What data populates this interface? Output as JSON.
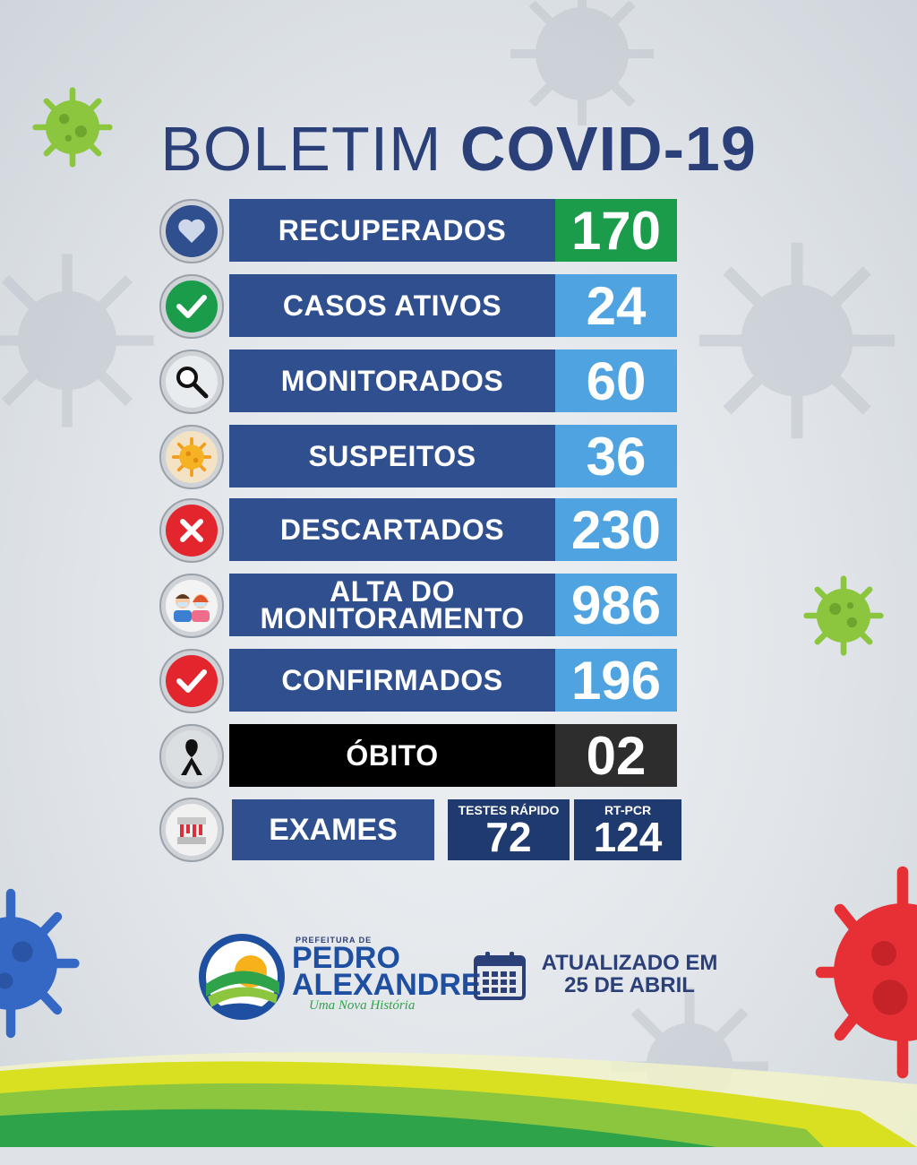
{
  "title": {
    "light": "BOLETIM",
    "bold": "COVID-19"
  },
  "rows": [
    {
      "label": "RECUPERADOS",
      "value": "170",
      "icon": "heart-icon",
      "value_color": "#1a9c4a"
    },
    {
      "label": "CASOS ATIVOS",
      "value": "24",
      "icon": "checkmark-icon",
      "value_color": "#4fa3e0"
    },
    {
      "label": "MONITORADOS",
      "value": "60",
      "icon": "magnifier-icon",
      "value_color": "#4fa3e0"
    },
    {
      "label": "SUSPEITOS",
      "value": "36",
      "icon": "virus-icon",
      "value_color": "#4fa3e0"
    },
    {
      "label": "DESCARTADOS",
      "value": "230",
      "icon": "x-icon",
      "value_color": "#4fa3e0"
    },
    {
      "label_line1": "ALTA DO",
      "label_line2": "MONITORAMENTO",
      "value": "986",
      "icon": "masked-people-icon",
      "value_color": "#4fa3e0"
    },
    {
      "label": "CONFIRMADOS",
      "value": "196",
      "icon": "check-red-icon",
      "value_color": "#4fa3e0"
    },
    {
      "label": "ÓBITO",
      "value": "02",
      "icon": "mourning-ribbon-icon",
      "value_color": "#2d2d2d"
    }
  ],
  "exams": {
    "label": "EXAMES",
    "rapid": {
      "label": "TESTES RÁPIDO",
      "value": "72"
    },
    "pcr": {
      "label": "RT-PCR",
      "value": "124"
    }
  },
  "logo": {
    "prefix": "PREFEITURA DE",
    "line1": "PEDRO",
    "line2": "ALEXANDRE",
    "slogan": "Uma Nova História"
  },
  "updated": {
    "line1": "ATUALIZADO EM",
    "line2": "25 DE ABRIL"
  },
  "colors": {
    "label_bg": "#2f4f8e",
    "value_blue": "#4fa3e0",
    "recovered_green": "#1a9c4a",
    "death_black": "#000000",
    "title": "#2b3f78"
  }
}
